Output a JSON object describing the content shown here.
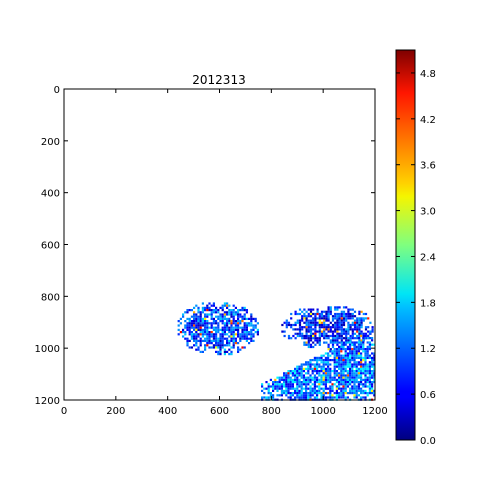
{
  "chart_data": {
    "type": "heatmap",
    "title": "2012313",
    "xlabel": "",
    "ylabel": "",
    "xlim": [
      0,
      1200
    ],
    "ylim": [
      1200,
      0
    ],
    "x_ticks": [
      0,
      200,
      400,
      600,
      800,
      1000,
      1200
    ],
    "y_ticks": [
      0,
      200,
      400,
      600,
      800,
      1000,
      1200
    ],
    "x_tick_labels": [
      "0",
      "200",
      "400",
      "600",
      "800",
      "1000",
      "1200"
    ],
    "y_tick_labels": [
      "0",
      "200",
      "400",
      "600",
      "800",
      "1000",
      "1200"
    ],
    "colormap": "jet",
    "colorbar": {
      "range": [
        0,
        5.1
      ],
      "ticks": [
        0.0,
        0.6,
        1.2,
        1.8,
        2.4,
        3.0,
        3.6,
        4.2,
        4.8
      ],
      "tick_labels": [
        "0.0",
        "0.6",
        "1.2",
        "1.8",
        "2.4",
        "3.0",
        "3.6",
        "4.2",
        "4.8"
      ]
    },
    "grid": false,
    "background_color": "#ffffff",
    "regions": [
      {
        "x_range": [
          430,
          750
        ],
        "y_range": [
          815,
          1025
        ],
        "typical_value": 1.0
      },
      {
        "x_range": [
          830,
          1200
        ],
        "y_range": [
          830,
          1000
        ],
        "typical_value": 0.8
      },
      {
        "x_range": [
          760,
          1200
        ],
        "y_range": [
          940,
          1195
        ],
        "typical_value": 1.2
      }
    ]
  }
}
